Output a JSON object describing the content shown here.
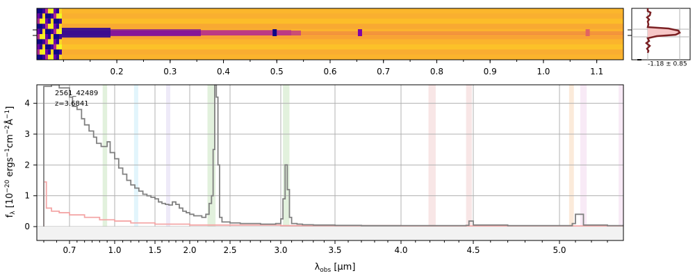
{
  "chart_data": [
    {
      "panel": "2d-spectrum",
      "type": "heatmap",
      "colormap": "plasma",
      "xlabel": "",
      "x_tick_labels": [
        "0.2",
        "0.3",
        "0.4",
        "0.5",
        "0.6",
        "0.7",
        "0.8",
        "0.9",
        "1.0",
        "1.1"
      ],
      "x_tick_values": [
        0.2,
        0.3,
        0.4,
        0.5,
        0.6,
        0.7,
        0.8,
        0.9,
        1.0,
        1.1
      ],
      "xlim": [
        0.05,
        1.15
      ],
      "bright_spots_x": [
        0.496,
        0.656,
        1.083
      ]
    },
    {
      "panel": "profile",
      "type": "line",
      "annotation": "-1.18 ± 0.85",
      "color": "#7a1f22",
      "fill": "#f7c7c7"
    },
    {
      "panel": "1d-spectrum",
      "type": "line",
      "annotation": [
        "2561_42489",
        "z=3.6841"
      ],
      "xlabel_main": "λ",
      "xlabel_sub": "obs",
      "xlabel_unit": " [μm]",
      "ylabel_main": "f",
      "ylabel_sub": "λ",
      "ylabel_unit_pre": " [10",
      "ylabel_unit_exp1": "−20",
      "ylabel_unit_mid": " ergs",
      "ylabel_unit_exp2": "−1",
      "ylabel_unit_mid2": "cm",
      "ylabel_unit_exp3": "−2",
      "ylabel_unit_mid3": "Å",
      "ylabel_unit_exp4": "−1",
      "ylabel_unit_end": "]",
      "ylim": [
        -0.45,
        4.6
      ],
      "y_ticks": [
        0,
        1,
        2,
        3,
        4
      ],
      "x_tick_labels": [
        "0.7",
        "1.0",
        "1.5",
        "2.0",
        "2.5",
        "3.0",
        "3.5",
        "4.0",
        "4.5",
        "5.0"
      ],
      "x_tick_values": [
        0.7,
        1.0,
        1.5,
        2.0,
        2.5,
        3.0,
        3.5,
        4.0,
        4.5,
        5.0
      ],
      "grid": true,
      "series": [
        {
          "color": "#808080",
          "x": [
            0.6,
            0.63,
            0.66,
            0.7,
            0.72,
            0.75,
            0.78,
            0.8,
            0.83,
            0.86,
            0.88,
            0.91,
            0.93,
            0.95,
            0.97,
            1.0,
            1.05,
            1.1,
            1.15,
            1.2,
            1.25,
            1.3,
            1.35,
            1.4,
            1.45,
            1.5,
            1.55,
            1.6,
            1.65,
            1.7,
            1.75,
            1.8,
            1.85,
            1.9,
            1.95,
            2.0,
            2.05,
            2.1,
            2.15,
            2.2,
            2.24,
            2.27,
            2.29,
            2.31,
            2.33,
            2.35,
            2.37,
            2.4,
            2.5,
            2.6,
            2.7,
            2.8,
            2.9,
            2.95,
            3.0,
            3.02,
            3.04,
            3.06,
            3.08,
            3.1,
            3.15,
            3.2,
            3.3,
            3.5,
            3.7,
            3.9,
            4.1,
            4.3,
            4.45,
            4.47,
            4.5,
            4.7,
            4.9,
            5.05,
            5.08,
            5.1,
            5.15,
            5.3,
            5.4
          ],
          "y": [
            4.55,
            4.6,
            4.5,
            4.2,
            3.9,
            3.8,
            3.5,
            3.3,
            3.1,
            2.9,
            2.7,
            2.6,
            2.6,
            2.75,
            2.4,
            2.2,
            1.9,
            1.7,
            1.5,
            1.35,
            1.25,
            1.15,
            1.05,
            1.0,
            0.95,
            0.9,
            0.8,
            0.75,
            0.72,
            0.7,
            0.8,
            0.72,
            0.6,
            0.5,
            0.45,
            0.4,
            0.35,
            0.35,
            0.3,
            0.4,
            0.75,
            1.0,
            2.5,
            4.6,
            4.2,
            2.0,
            0.3,
            0.15,
            0.12,
            0.1,
            0.1,
            0.08,
            0.08,
            0.1,
            0.25,
            0.9,
            2.0,
            1.2,
            0.3,
            0.1,
            0.08,
            0.06,
            0.05,
            0.04,
            0.03,
            0.03,
            0.03,
            0.03,
            0.04,
            0.18,
            0.05,
            0.03,
            0.03,
            0.03,
            0.1,
            0.4,
            0.05,
            0.03,
            0.03
          ]
        },
        {
          "color": "#f4a6a6",
          "x": [
            0.6,
            0.61,
            0.63,
            0.66,
            0.7,
            0.8,
            0.9,
            1.0,
            1.2,
            1.5,
            2.0,
            3.0,
            4.0,
            5.0,
            5.4
          ],
          "y": [
            1.45,
            0.6,
            0.5,
            0.45,
            0.38,
            0.3,
            0.22,
            0.18,
            0.12,
            0.08,
            0.05,
            0.03,
            0.02,
            0.02,
            0.02
          ]
        }
      ],
      "emission_bands": [
        {
          "x": [
            0.92,
            0.95
          ],
          "color": "#cfe8c6"
        },
        {
          "x": [
            1.24,
            1.28
          ],
          "color": "#cfeefa"
        },
        {
          "x": [
            1.66,
            1.72
          ],
          "color": "#e2dcf3"
        },
        {
          "x": [
            2.22,
            2.32
          ],
          "color": "#cfe8c6"
        },
        {
          "x": [
            3.02,
            3.08
          ],
          "color": "#cfe8c6"
        },
        {
          "x": [
            4.19,
            4.24
          ],
          "color": "#f3d5d5"
        },
        {
          "x": [
            4.45,
            4.49
          ],
          "color": "#f3d5d5"
        },
        {
          "x": [
            5.06,
            5.09
          ],
          "color": "#f9dcc2"
        },
        {
          "x": [
            5.13,
            5.17
          ],
          "color": "#f3dcf0"
        },
        {
          "x": [
            5.37,
            5.4
          ],
          "color": "#f3dcf0"
        }
      ]
    }
  ]
}
